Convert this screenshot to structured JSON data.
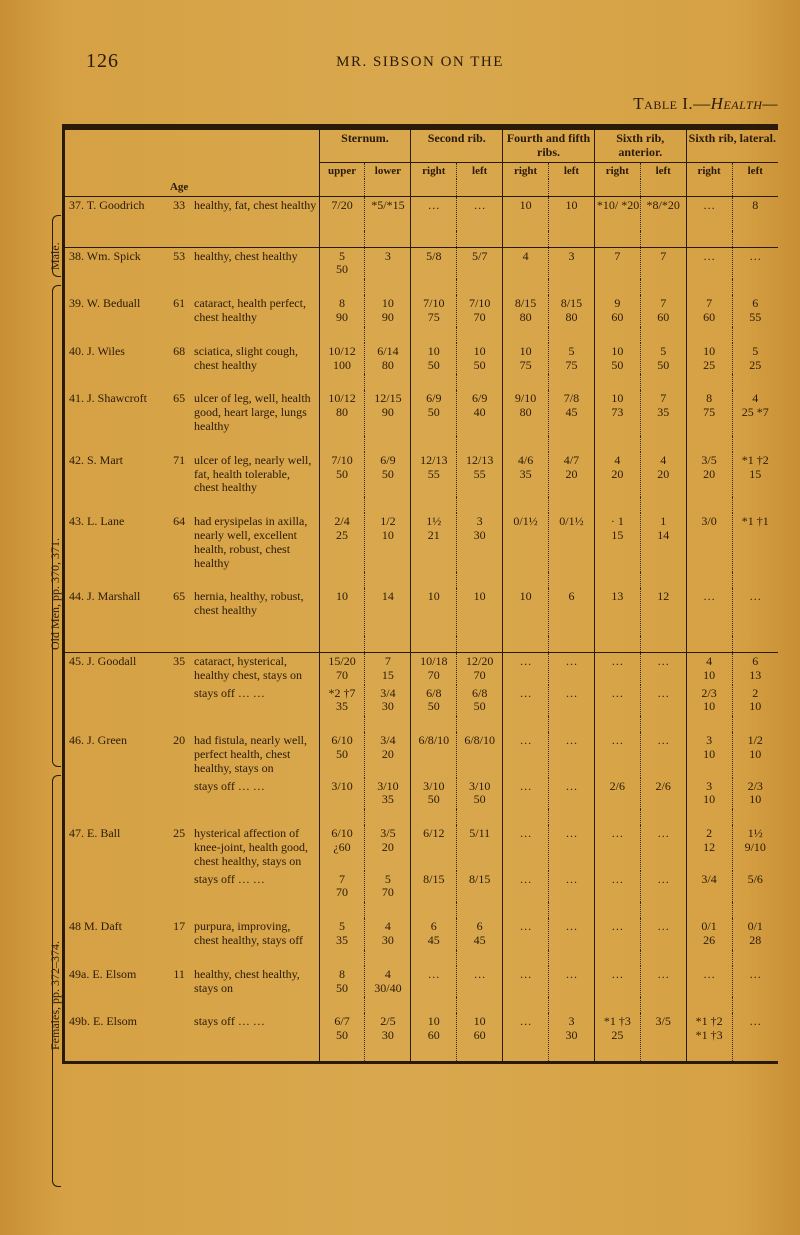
{
  "page_number": "126",
  "running_head": "MR. SIBSON ON THE",
  "table_title_a": "Table I.—",
  "table_title_b": "Health—",
  "side_labels": {
    "male": "Male.",
    "old": "Old Men, pp. 370, 371.",
    "fem": "Females, pp. 372–374."
  },
  "head": {
    "sternum": "Sternum.",
    "second": "Second rib.",
    "fourth": "Fourth and fifth ribs.",
    "sixth_a": "Sixth rib, anterior.",
    "sixth_l": "Sixth rib, lateral.",
    "upper": "upper",
    "lower": "lower",
    "right": "right",
    "left": "left",
    "age": "Age"
  },
  "rows": [
    {
      "n": "37.",
      "name": "T. Goodrich",
      "age": "33",
      "cond": "healthy, fat, chest healthy",
      "c": [
        "7/20",
        "*5/*15",
        "…",
        "…",
        "10",
        "10",
        "*10/ *20",
        "*8/*20",
        "…",
        "8"
      ]
    },
    {
      "n": "38.",
      "name": "Wm. Spick",
      "age": "53",
      "cond": "healthy, chest healthy",
      "c": [
        "5\n50",
        "3",
        "5/8",
        "5/7",
        "4",
        "3",
        "7",
        "7",
        "…",
        "…"
      ]
    },
    {
      "n": "39.",
      "name": "W. Beduall",
      "age": "61",
      "cond": "cataract, health perfect, chest healthy",
      "c": [
        "8\n90",
        "10\n90",
        "7/10\n75",
        "7/10\n70",
        "8/15\n80",
        "8/15\n80",
        "9\n60",
        "7\n60",
        "7\n60",
        "6\n55"
      ]
    },
    {
      "n": "40.",
      "name": "J. Wiles",
      "age": "68",
      "cond": "sciatica, slight cough, chest healthy",
      "c": [
        "10/12\n100",
        "6/14\n80",
        "10\n50",
        "10\n50",
        "10\n75",
        "5\n75",
        "10\n50",
        "5\n50",
        "10\n25",
        "5\n25"
      ]
    },
    {
      "n": "41.",
      "name": "J. Shawcroft",
      "age": "65",
      "cond": "ulcer of leg, well, health good, heart large, lungs healthy",
      "c": [
        "10/12\n80",
        "12/15\n90",
        "6/9\n50",
        "6/9\n40",
        "9/10\n80",
        "7/8\n45",
        "10\n73",
        "7\n35",
        "8\n75",
        "4\n25 *7"
      ]
    },
    {
      "n": "42.",
      "name": "S. Mart",
      "age": "71",
      "cond": "ulcer of leg, nearly well, fat, health tolerable, chest healthy",
      "c": [
        "7/10\n50",
        "6/9\n50",
        "12/13\n55",
        "12/13\n55",
        "4/6\n35",
        "4/7\n20",
        "4\n20",
        "4\n20",
        "3/5\n20",
        "*1 †2\n15"
      ]
    },
    {
      "n": "43.",
      "name": "L. Lane",
      "age": "64",
      "cond": "had erysipelas in axilla, nearly well, excellent health, robust, chest healthy",
      "c": [
        "2/4\n25",
        "1/2\n10",
        "1½\n21",
        "3\n30",
        "0/1½",
        "0/1½",
        "· 1\n15",
        "1\n14",
        "3/0",
        "*1 †1"
      ]
    },
    {
      "n": "44.",
      "name": "J. Marshall",
      "age": "65",
      "cond": "hernia, healthy, robust, chest healthy",
      "c": [
        "10",
        "14",
        "10",
        "10",
        "10",
        "6",
        "13",
        "12",
        "…",
        "…"
      ]
    },
    {
      "n": "45.",
      "name": "J. Goodall",
      "age": "35",
      "cond": "cataract, hysterical, healthy chest, stays on",
      "c": [
        "15/20\n70",
        "7\n15",
        "10/18\n70",
        "12/20\n70",
        "…",
        "…",
        "…",
        "…",
        "4\n10",
        "6\n13"
      ]
    },
    {
      "n": "",
      "name": "",
      "age": "",
      "cond": "stays off  …  …",
      "c": [
        "*2 †7\n35",
        "3/4\n30",
        "6/8\n50",
        "6/8\n50",
        "…",
        "…",
        "…",
        "…",
        "2/3\n10",
        "2\n10"
      ]
    },
    {
      "n": "46.",
      "name": "J. Green",
      "age": "20",
      "cond": "had fistula, nearly well, perfect health, chest healthy, stays on",
      "c": [
        "6/10\n50",
        "3/4\n20",
        "6/8/10",
        "6/8/10",
        "…",
        "…",
        "…",
        "…",
        "3\n10",
        "1/2\n10"
      ]
    },
    {
      "n": "",
      "name": "",
      "age": "",
      "cond": "stays off  …  …",
      "c": [
        "3/10",
        "3/10\n35",
        "3/10\n50",
        "3/10\n50",
        "…",
        "…",
        "2/6",
        "2/6",
        "3\n10",
        "2/3\n10"
      ]
    },
    {
      "n": "47.",
      "name": "E. Ball",
      "age": "25",
      "cond": "hysterical affection of knee-joint, health good, chest healthy, stays on",
      "c": [
        "6/10\n¿60",
        "3/5\n20",
        "6/12",
        "5/11",
        "…",
        "…",
        "…",
        "…",
        "2\n12",
        "1½\n9/10"
      ]
    },
    {
      "n": "",
      "name": "",
      "age": "",
      "cond": "stays off  …  …",
      "c": [
        "7\n70",
        "5\n70",
        "8/15",
        "8/15",
        "…",
        "…",
        "…",
        "…",
        "3/4",
        "5/6"
      ]
    },
    {
      "n": "48",
      "name": "M. Daft",
      "age": "17",
      "cond": "purpura, improving, chest healthy, stays off",
      "c": [
        "5\n35",
        "4\n30",
        "6\n45",
        "6\n45",
        "…",
        "…",
        "…",
        "…",
        "0/1\n26",
        "0/1\n28"
      ]
    },
    {
      "n": "49a.",
      "name": "E. Elsom",
      "age": "11",
      "cond": "healthy, chest healthy, stays on",
      "c": [
        "8\n50",
        "4\n30/40",
        "…",
        "…",
        "…",
        "…",
        "…",
        "…",
        "…",
        "…"
      ]
    },
    {
      "n": "49b.",
      "name": "E. Elsom",
      "age": "",
      "cond": "stays off  …  …",
      "c": [
        "6/7\n50",
        "2/5\n30",
        "10\n60",
        "10\n60",
        "…",
        "3\n30",
        "*1 †3\n25",
        "3/5",
        "*1 †2\n*1 †3",
        "…"
      ]
    }
  ],
  "layout": {
    "pair_cols": 10
  },
  "colors": {
    "paper": "#d6a144",
    "ink": "#2a1a08"
  }
}
